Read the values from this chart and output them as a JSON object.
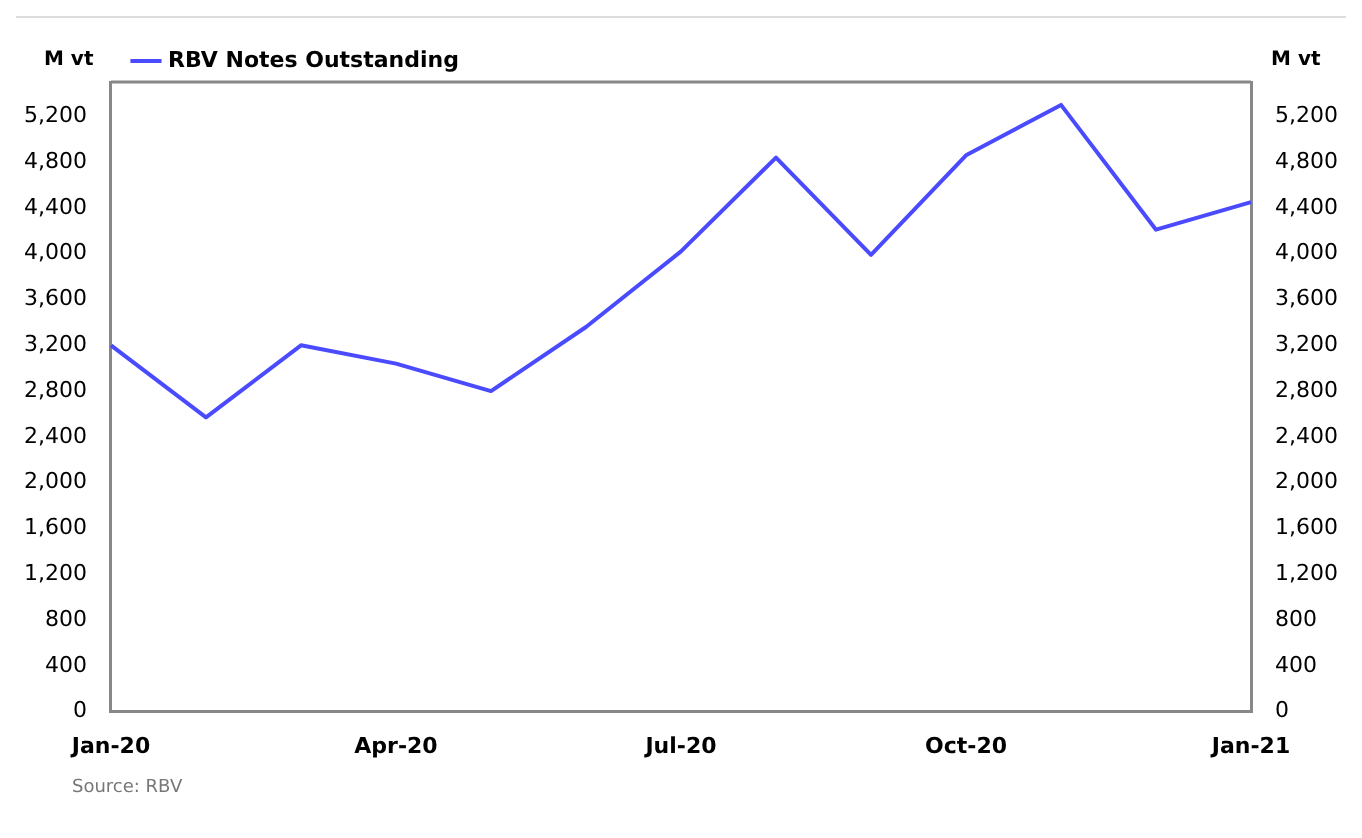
{
  "chart_data": {
    "type": "line",
    "ylabel": "M vt",
    "y2label": "M vt",
    "categories": [
      "Jan-20",
      null,
      null,
      "Apr-20",
      null,
      null,
      "Jul-20",
      null,
      null,
      "Oct-20",
      null,
      null,
      "Jan-21"
    ],
    "series": [
      {
        "name": "RBV Notes Outstanding",
        "color": "#4a4aff",
        "values": [
          3200,
          2570,
          3200,
          3040,
          2800,
          3360,
          4020,
          4840,
          3990,
          4860,
          5300,
          4210,
          4450
        ]
      }
    ],
    "ylim": [
      0,
      5500
    ],
    "yticks": [
      {
        "value": 0,
        "label": "0"
      },
      {
        "value": 400,
        "label": "400"
      },
      {
        "value": 800,
        "label": "800"
      },
      {
        "value": 1200,
        "label": "1,200"
      },
      {
        "value": 1600,
        "label": "1,600"
      },
      {
        "value": 2000,
        "label": "2,000"
      },
      {
        "value": 2400,
        "label": "2,400"
      },
      {
        "value": 2800,
        "label": "2,800"
      },
      {
        "value": 3200,
        "label": "3,200"
      },
      {
        "value": 3600,
        "label": "3,600"
      },
      {
        "value": 4000,
        "label": "4,000"
      },
      {
        "value": 4400,
        "label": "4,400"
      },
      {
        "value": 4800,
        "label": "4,800"
      },
      {
        "value": 5200,
        "label": "5,200"
      }
    ],
    "y2lim": [
      0,
      5500
    ],
    "y2ticks": [
      {
        "value": 0,
        "label": "0"
      },
      {
        "value": 400,
        "label": "400"
      },
      {
        "value": 800,
        "label": "800"
      },
      {
        "value": 1200,
        "label": "1,200"
      },
      {
        "value": 1600,
        "label": "1,600"
      },
      {
        "value": 2000,
        "label": "2,000"
      },
      {
        "value": 2400,
        "label": "2,400"
      },
      {
        "value": 2800,
        "label": "2,800"
      },
      {
        "value": 3200,
        "label": "3,200"
      },
      {
        "value": 3600,
        "label": "3,600"
      },
      {
        "value": 4000,
        "label": "4,000"
      },
      {
        "value": 4400,
        "label": "4,400"
      },
      {
        "value": 4800,
        "label": "4,800"
      },
      {
        "value": 5200,
        "label": "5,200"
      }
    ],
    "grid": false,
    "legend": "top left",
    "marker": "none",
    "line_style": "solid",
    "annotations": [
      "Source: RBV"
    ]
  }
}
